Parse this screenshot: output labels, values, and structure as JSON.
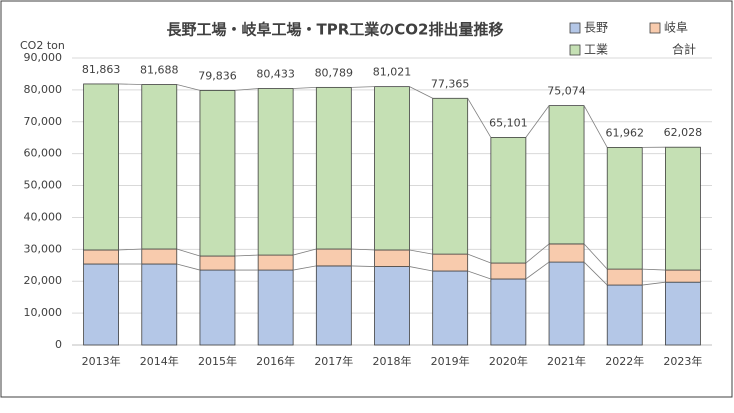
{
  "chart_data": {
    "type": "stacked-bar",
    "title": "長野工場・岐阜工場・TPR工業のCO2排出量推移",
    "y_label": "CO2 ton",
    "categories": [
      "2013年",
      "2014年",
      "2015年",
      "2016年",
      "2017年",
      "2018年",
      "2019年",
      "2020年",
      "2021年",
      "2022年",
      "2023年"
    ],
    "series": [
      {
        "name": "長野",
        "color": "#b4c7e7",
        "values": [
          25400,
          25400,
          23500,
          23500,
          24800,
          24600,
          23200,
          20700,
          26000,
          18800,
          19700
        ]
      },
      {
        "name": "岐阜",
        "color": "#f8cbad",
        "values": [
          4400,
          4700,
          4400,
          4700,
          5300,
          5200,
          5300,
          5000,
          5700,
          5000,
          3800
        ]
      },
      {
        "name": "工業",
        "color": "#c5e0b4",
        "values": [
          52063,
          51588,
          51936,
          52233,
          50689,
          51221,
          48865,
          39401,
          43374,
          38162,
          38528
        ]
      }
    ],
    "totals": {
      "name": "合計",
      "values": [
        81863,
        81688,
        79836,
        80433,
        80789,
        81021,
        77365,
        65101,
        75074,
        61962,
        62028
      ],
      "value_labels": [
        "81,863",
        "81,688",
        "79,836",
        "80,433",
        "80,789",
        "81,021",
        "77,365",
        "65,101",
        "75,074",
        "61,962",
        "62,028"
      ]
    },
    "ylim": [
      0,
      90000
    ],
    "yticks": [
      0,
      {
        "value": 10000,
        "label": "10,000"
      },
      {
        "value": 20000,
        "label": "20,000"
      },
      {
        "value": 30000,
        "label": "30,000"
      },
      {
        "value": 40000,
        "label": "40,000"
      },
      {
        "value": 50000,
        "label": "50,000"
      },
      {
        "value": 60000,
        "label": "60,000"
      },
      {
        "value": 70000,
        "label": "70,000"
      },
      {
        "value": 80000,
        "label": "80,000"
      },
      {
        "value": 90000,
        "label": "90,000"
      }
    ],
    "grid": true
  }
}
